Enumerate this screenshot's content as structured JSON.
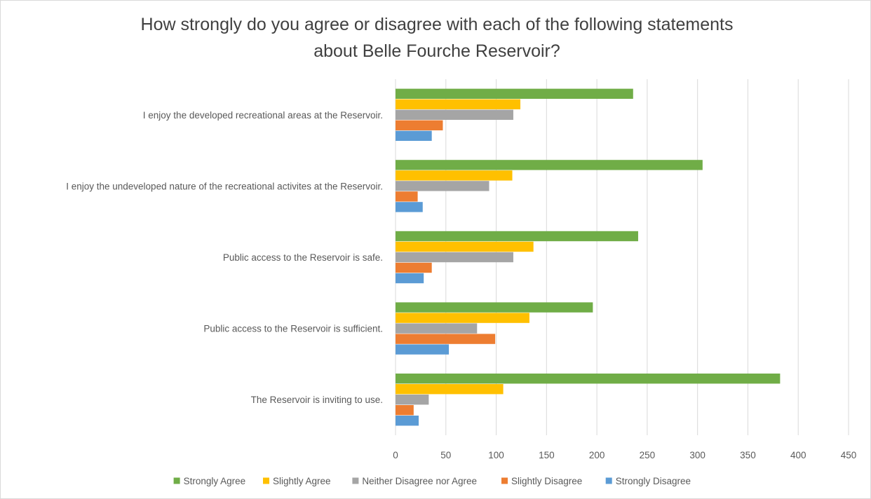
{
  "chart_data": {
    "type": "bar",
    "orientation": "horizontal",
    "title": "How strongly do you agree or disagree with each of the following statements about Belle Fourche Reservoir?",
    "title_lines": [
      "How strongly do you agree or disagree with each of the following statements",
      "about Belle Fourche Reservoir?"
    ],
    "categories": [
      "I enjoy the developed recreational areas at the Reservoir.",
      "I enjoy the undeveloped nature of the recreational activites at the Reservoir.",
      "Public access to the Reservoir is safe.",
      "Public access to the Reservoir is sufficient.",
      "The Reservoir is inviting to use."
    ],
    "series": [
      {
        "name": "Strongly Agree",
        "color": "#70ad47",
        "values": [
          236,
          305,
          241,
          196,
          382
        ]
      },
      {
        "name": "Slightly Agree",
        "color": "#ffc000",
        "values": [
          124,
          116,
          137,
          133,
          107
        ]
      },
      {
        "name": "Neither Disagree nor Agree",
        "color": "#a5a5a5",
        "values": [
          117,
          93,
          117,
          81,
          33
        ]
      },
      {
        "name": "Slightly Disagree",
        "color": "#ed7d31",
        "values": [
          47,
          22,
          36,
          99,
          18
        ]
      },
      {
        "name": "Strongly Disagree",
        "color": "#5b9bd5",
        "values": [
          36,
          27,
          28,
          53,
          23
        ]
      }
    ],
    "xlim": [
      0,
      450
    ],
    "xticks": [
      0,
      50,
      100,
      150,
      200,
      250,
      300,
      350,
      400,
      450
    ],
    "xlabel": "",
    "ylabel": "",
    "grid": true,
    "legend_position": "bottom"
  }
}
